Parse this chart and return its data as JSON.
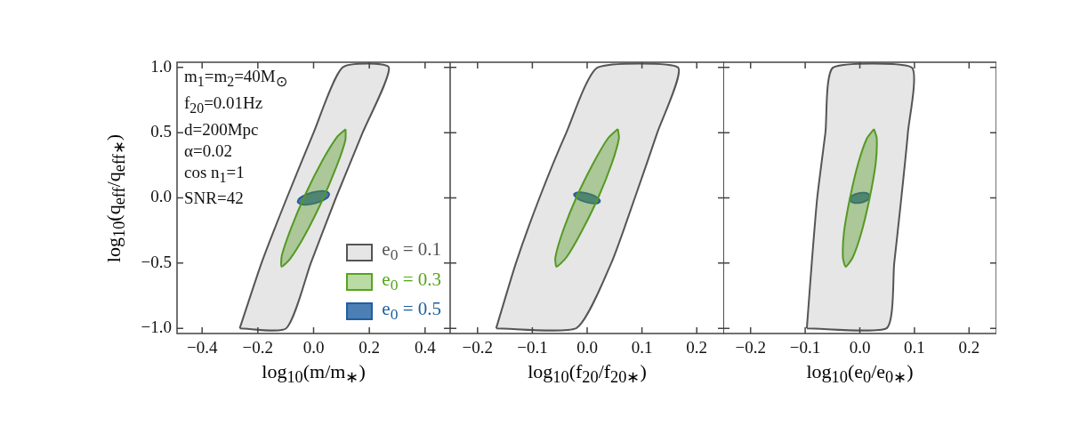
{
  "chart_data": [
    {
      "type": "area",
      "xlabel": "log$_{10}$(m/m$_{∗}$)",
      "ylabel": "log$_{10}$(q$_{eff}$/q$_{eff∗}$)",
      "xlim": [
        -0.49,
        0.49
      ],
      "ylim": [
        -1.04,
        1.04
      ],
      "xticks": [
        {
          "value": -0.4,
          "label": "−0.4"
        },
        {
          "value": -0.2,
          "label": "−0.2"
        },
        {
          "value": 0,
          "label": "0.0"
        },
        {
          "value": 0.2,
          "label": "0.2"
        },
        {
          "value": 0.4,
          "label": "0.4"
        }
      ],
      "yticks": [
        {
          "value": -1,
          "label": "−1.0"
        },
        {
          "value": -0.5,
          "label": "−0.5"
        },
        {
          "value": 0,
          "label": "0.0"
        },
        {
          "value": 0.5,
          "label": "0.5"
        },
        {
          "value": 1,
          "label": "1.0"
        }
      ],
      "legend": "bottom right",
      "annotations": [
        "m$_{1}$=m$_{2}$=40M$_{⊙}$",
        "f$_{20}$=0.01Hz",
        "d=200Mpc",
        "α=0.02",
        "cos n$_{1}$=1",
        "SNR=42"
      ],
      "series": [
        {
          "name": "e$_{0}$ = 0.1",
          "color": "#555555",
          "x": [
            -0.265,
            -0.187,
            -0.096,
            0.0,
            0.104,
            0.27,
            0.176,
            0.08,
            -0.01,
            -0.098
          ],
          "values": [
            -1,
            -0.5,
            0,
            0.5,
            1,
            1,
            0.5,
            0,
            -0.5,
            -1
          ]
        },
        {
          "name": "e$_{0}$ = 0.3",
          "color": "#55a51c",
          "x": [
            0.115,
            0.114,
            0.082,
            0.029,
            -0.032,
            -0.085,
            -0.115,
            -0.114,
            -0.082,
            -0.029,
            0.032,
            0.085
          ],
          "values": [
            0.527,
            0.442,
            0.239,
            -0.029,
            -0.288,
            -0.47,
            -0.527,
            -0.442,
            -0.239,
            0.029,
            0.288,
            0.47
          ]
        },
        {
          "name": "e$_{0}$ = 0.5",
          "color": "#1f5fa0",
          "x": [
            0.057,
            0.052,
            0.033,
            0.005,
            -0.024,
            -0.047,
            -0.057,
            -0.052,
            -0.033,
            -0.005,
            0.024,
            0.047
          ],
          "values": [
            0.032,
            0.007,
            -0.02,
            -0.041,
            -0.052,
            -0.048,
            -0.032,
            -0.007,
            0.02,
            0.041,
            0.052,
            0.048
          ]
        }
      ]
    },
    {
      "type": "area",
      "xlabel": "log$_{10}$(f$_{20}$/f$_{20∗}$)",
      "xlim": [
        -0.25,
        0.25
      ],
      "ylim": [
        -1.04,
        1.04
      ],
      "tick_labels": "x",
      "xticks": [
        {
          "value": -0.2,
          "label": "−0.2"
        },
        {
          "value": -0.1,
          "label": "−0.1"
        },
        {
          "value": 0,
          "label": "0.0"
        },
        {
          "value": 0.1,
          "label": "0.1"
        },
        {
          "value": 0.2,
          "label": "0.2"
        }
      ],
      "yticks": [
        -1,
        -0.5,
        0,
        0.5,
        1
      ],
      "series": [
        {
          "color": "#555555",
          "x": [
            -0.166,
            -0.13,
            -0.087,
            -0.038,
            0.019,
            0.166,
            0.128,
            0.087,
            0.044,
            -0.02
          ],
          "values": [
            -1,
            -0.5,
            0,
            0.5,
            1,
            1,
            0.5,
            0,
            -0.5,
            -1
          ]
        },
        {
          "color": "#55a51c",
          "x": [
            0.056,
            0.058,
            0.045,
            0.02,
            -0.011,
            -0.038,
            -0.056,
            -0.058,
            -0.045,
            -0.02,
            0.011,
            0.038
          ],
          "values": [
            0.528,
            0.457,
            0.264,
            0,
            -0.264,
            -0.457,
            -0.528,
            -0.457,
            -0.264,
            0,
            0.264,
            0.457
          ]
        },
        {
          "color": "#1f5fa0",
          "x": [
            0.024,
            0.02,
            0.012,
            0,
            -0.012,
            -0.02,
            -0.024,
            -0.02,
            -0.012,
            0,
            0.012,
            0.02
          ],
          "values": [
            -0.025,
            -0.004,
            0.018,
            0.035,
            0.043,
            0.04,
            0.025,
            0.004,
            -0.018,
            -0.035,
            -0.043,
            -0.04
          ]
        }
      ]
    },
    {
      "type": "area",
      "xlabel": "log$_{10}$(e$_{0}$/e$_{0∗}$)",
      "xlim": [
        -0.25,
        0.25
      ],
      "ylim": [
        -1.04,
        1.04
      ],
      "tick_labels": "x",
      "xticks": [
        {
          "value": -0.2,
          "label": "−0.2"
        },
        {
          "value": -0.1,
          "label": "−0.1"
        },
        {
          "value": 0,
          "label": "0.0"
        },
        {
          "value": 0.1,
          "label": "0.1"
        },
        {
          "value": 0.2,
          "label": "0.2"
        }
      ],
      "yticks": [
        -1,
        -0.5,
        0,
        0.5,
        1
      ],
      "series": [
        {
          "color": "#555555",
          "x": [
            -0.097,
            -0.088,
            -0.078,
            -0.063,
            -0.049,
            0.095,
            0.088,
            0.076,
            0.063,
            0.049
          ],
          "values": [
            -1,
            -0.5,
            0,
            0.5,
            1,
            1,
            0.5,
            0,
            -0.5,
            -1
          ]
        },
        {
          "color": "#55a51c",
          "x": [
            0.026,
            0.031,
            0.029,
            0.018,
            0.003,
            -0.013,
            -0.026,
            -0.031,
            -0.029,
            -0.018,
            -0.003,
            0.013
          ],
          "values": [
            0.528,
            0.457,
            0.264,
            0,
            -0.264,
            -0.457,
            -0.528,
            -0.457,
            -0.264,
            0,
            0.264,
            0.457
          ]
        },
        {
          "color": "#1f5fa0",
          "x": [
            0.018,
            0.016,
            0.009,
            0,
            -0.009,
            -0.016,
            -0.018,
            -0.016,
            -0.009,
            0,
            0.009,
            0.016
          ],
          "values": [
            0.012,
            0.029,
            0.039,
            0.038,
            0.027,
            0.009,
            -0.012,
            -0.029,
            -0.039,
            -0.038,
            -0.027,
            -0.009
          ]
        }
      ]
    }
  ]
}
